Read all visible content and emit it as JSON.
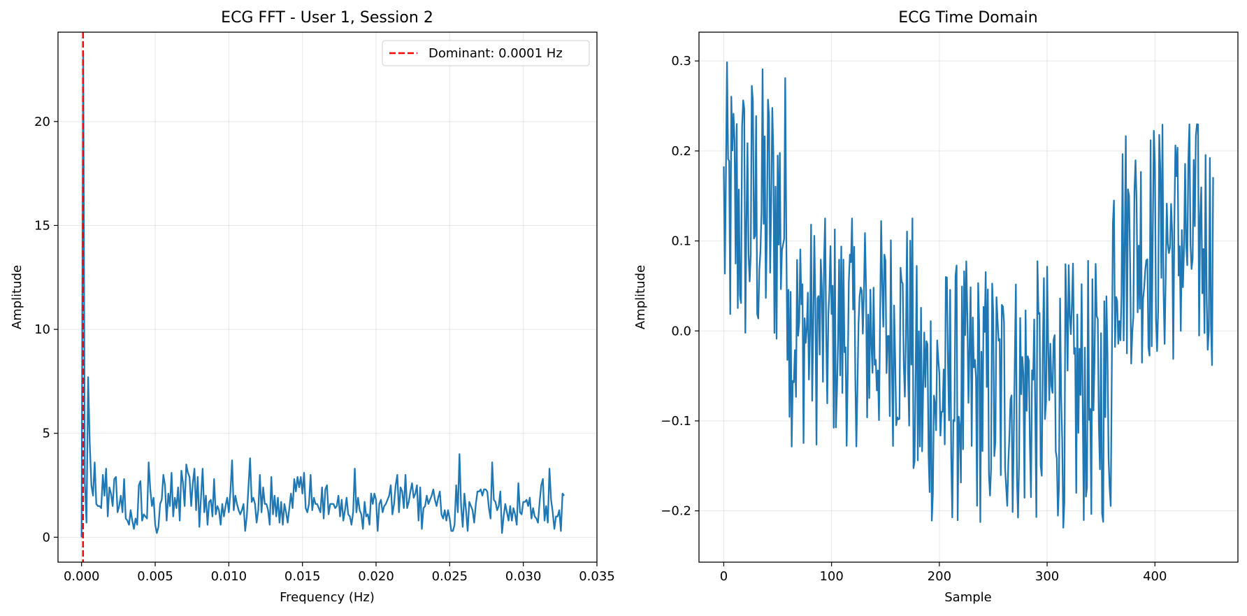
{
  "figure": {
    "background": "#ffffff",
    "line_color": "#1f77b4",
    "dominant_color": "#ff0000",
    "grid_color": "#b0b0b0"
  },
  "chart_data": [
    {
      "type": "line",
      "title": "ECG FFT - User 1, Session 2",
      "xlabel": "Frequency (Hz)",
      "ylabel": "Amplitude",
      "xlim": [
        -0.0016,
        0.035
      ],
      "ylim": [
        -1.2,
        24.3
      ],
      "xticks": [
        0.0,
        0.005,
        0.01,
        0.015,
        0.02,
        0.025,
        0.03,
        0.035
      ],
      "xtick_labels": [
        "0.000",
        "0.005",
        "0.010",
        "0.015",
        "0.020",
        "0.025",
        "0.030",
        "0.035"
      ],
      "yticks": [
        0,
        5,
        10,
        15,
        20
      ],
      "ytick_labels": [
        "0",
        "5",
        "10",
        "15",
        "20"
      ],
      "grid": true,
      "legend_position": "top-right",
      "legend": [
        {
          "label": "Dominant: 0.0001 Hz",
          "style": "dashed",
          "color": "#ff0000"
        }
      ],
      "vline": {
        "x": 0.0001,
        "color": "#ff0000",
        "style": "dashed"
      },
      "x_step": 0.0001111,
      "series": [
        {
          "color": "#1f77b4",
          "values": [
            0,
            23.3,
            2.6,
            0.7,
            7.7,
            4.5,
            2.5,
            2.0,
            3.6,
            1.6,
            1.5,
            1.5,
            1.4,
            3.0,
            2.0,
            3.3,
            1.0,
            2.4,
            2.1,
            1.5,
            2.8,
            2.9,
            1.2,
            1.5,
            2.0,
            1.2,
            2.8,
            0.9,
            0.8,
            0.6,
            1.3,
            0.8,
            0.4,
            0.9,
            0.6,
            2.5,
            2.7,
            0.8,
            1.1,
            1.0,
            0.9,
            3.6,
            2.3,
            1.5,
            1.9,
            0.6,
            0.2,
            0.5,
            1.6,
            1.8,
            3.0,
            2.5,
            0.8,
            2.1,
            1.5,
            3.1,
            1.0,
            1.9,
            1.4,
            2.4,
            0.8,
            3.2,
            2.6,
            1.5,
            3.5,
            3.1,
            2.9,
            1.5,
            2.6,
            3.3,
            1.3,
            2.9,
            0.5,
            1.9,
            3.3,
            1.2,
            2.0,
            0.6,
            1.7,
            1.8,
            1.0,
            2.8,
            1.1,
            1.5,
            1.3,
            0.6,
            1.6,
            1.0,
            1.5,
            1.9,
            1.2,
            2.2,
            3.7,
            1.3,
            2.0,
            1.6,
            1.3,
            1.1,
            1.3,
            1.6,
            0.3,
            1.0,
            2.4,
            3.8,
            1.7,
            1.9,
            1.6,
            0.7,
            1.3,
            3.0,
            1.2,
            2.4,
            1.6,
            1.6,
            1.3,
            0.6,
            2.9,
            1.1,
            2.0,
            1.0,
            1.9,
            0.7,
            1.7,
            0.6,
            1.6,
            1.2,
            0.7,
            1.4,
            2.1,
            1.4,
            2.8,
            2.2,
            2.9,
            2.4,
            2.9,
            2.1,
            3.1,
            1.4,
            1.2,
            1.6,
            3.0,
            1.3,
            1.9,
            1.6,
            1.6,
            1.4,
            1.2,
            2.4,
            0.9,
            2.3,
            2.5,
            1.1,
            1.6,
            1.6,
            1.6,
            1.4,
            1.5,
            2.0,
            1.0,
            1.8,
            0.8,
            1.3,
            1.9,
            1.1,
            1.0,
            0.6,
            1.2,
            3.3,
            1.2,
            1.9,
            1.3,
            1.1,
            0.4,
            1.7,
            1.0,
            1.1,
            0.6,
            2.1,
            1.6,
            2.1,
            1.8,
            0.3,
            1.6,
            1.8,
            1.2,
            1.5,
            1.6,
            1.8,
            2.0,
            2.5,
            1.1,
            1.6,
            2.5,
            3.0,
            1.2,
            2.4,
            2.2,
            1.4,
            3.0,
            1.4,
            1.7,
            2.2,
            2.6,
            1.9,
            2.1,
            2.5,
            0.8,
            2.4,
            0.4,
            1.4,
            1.5,
            2.0,
            1.6,
            1.8,
            2.0,
            2.3,
            1.8,
            1.5,
            1.9,
            2.2,
            1.1,
            0.9,
            1.3,
            0.8,
            1.3,
            0.9,
            0.3,
            0.3,
            0.6,
            2.5,
            1.2,
            4.0,
            1.5,
            0.5,
            2.1,
            1.3,
            0.3,
            1.7,
            1.5,
            1.3,
            0.7,
            1.6,
            2.2,
            2.2,
            2.3,
            2.0,
            2.3,
            2.3,
            2.2,
            1.4,
            0.9,
            3.6,
            1.8,
            1.7,
            1.3,
            1.5,
            2.2,
            0.2,
            1.0,
            1.6,
            1.2,
            0.8,
            1.5,
            0.8,
            1.4,
            1.1,
            0.6,
            2.6,
            1.2,
            1.1,
            1.7,
            1.7,
            1.8,
            1.5,
            1.9,
            0.9,
            1.4,
            1.0,
            0.9,
            0.7,
            1.7,
            2.5,
            2.8,
            0.8,
            1.5,
            0.7,
            3.3,
            1.8,
            1.2,
            0.4,
            1.0,
            1.0,
            1.3,
            0.3,
            2.1,
            2.0
          ]
        }
      ]
    },
    {
      "type": "line",
      "title": "ECG Time Domain",
      "xlabel": "Sample",
      "ylabel": "Amplitude",
      "xlim": [
        -23,
        477
      ],
      "ylim": [
        -0.257,
        0.332
      ],
      "xticks": [
        0,
        100,
        200,
        300,
        400
      ],
      "xtick_labels": [
        "0",
        "100",
        "200",
        "300",
        "400"
      ],
      "yticks": [
        -0.2,
        -0.1,
        0.0,
        0.1,
        0.2,
        0.3
      ],
      "ytick_labels": [
        "−0.2",
        "−0.1",
        "0.0",
        "0.1",
        "0.2",
        "0.3"
      ],
      "grid": true,
      "series": [
        {
          "color": "#1f77b4",
          "x_start": 0,
          "x_end": 454,
          "points": 455,
          "segments": [
            {
              "x_from": 0,
              "x_to": 60,
              "center": 0.13,
              "amplitude": 0.17,
              "peak_high": 0.305,
              "peak_low": -0.05
            },
            {
              "x_from": 60,
              "x_to": 175,
              "center": 0.0,
              "amplitude": 0.13,
              "peak_high": 0.125,
              "peak_low": -0.145
            },
            {
              "x_from": 175,
              "x_to": 360,
              "center": -0.07,
              "amplitude": 0.15,
              "peak_high": 0.08,
              "peak_low": -0.23
            },
            {
              "x_from": 360,
              "x_to": 454,
              "center": 0.1,
              "amplitude": 0.14,
              "peak_high": 0.235,
              "peak_low": -0.05
            }
          ]
        }
      ]
    }
  ]
}
